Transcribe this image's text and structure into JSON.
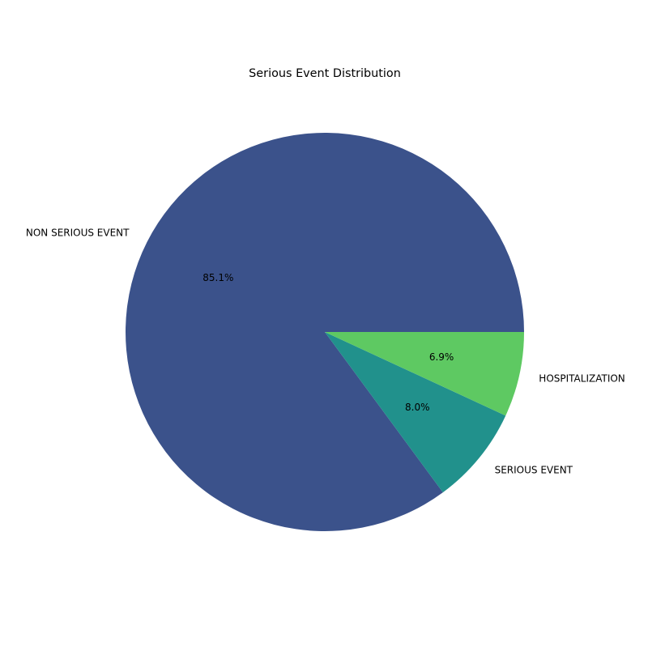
{
  "chart_data": {
    "type": "pie",
    "title": "Serious Event Distribution",
    "slices": [
      {
        "label": "NON SERIOUS EVENT",
        "value": 85.1,
        "pct_label": "85.1%",
        "color": "#3b528b"
      },
      {
        "label": "SERIOUS EVENT",
        "value": 8.0,
        "pct_label": "8.0%",
        "color": "#21918c"
      },
      {
        "label": "HOSPITALIZATION",
        "value": 6.9,
        "pct_label": "6.9%",
        "color": "#5ec962"
      }
    ],
    "start_angle_deg": 0,
    "direction": "counterclockwise"
  }
}
